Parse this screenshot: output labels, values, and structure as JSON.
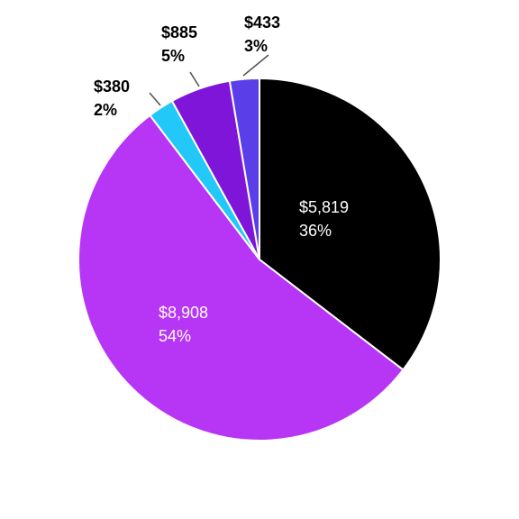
{
  "chart_data": {
    "type": "pie",
    "title": "",
    "legend": "none",
    "start": "12 o'clock",
    "direction": "clockwise",
    "slices": [
      {
        "value": 5819,
        "value_label": "$5,819",
        "pct_label": "36%",
        "color": "#000000",
        "label_position": "inside"
      },
      {
        "value": 8908,
        "value_label": "$8,908",
        "pct_label": "54%",
        "color": "#b735f5",
        "label_position": "inside"
      },
      {
        "value": 380,
        "value_label": "$380",
        "pct_label": "2%",
        "color": "#22c8f7",
        "label_position": "outside"
      },
      {
        "value": 885,
        "value_label": "$885",
        "pct_label": "5%",
        "color": "#7e15d8",
        "label_position": "outside"
      },
      {
        "value": 433,
        "value_label": "$433",
        "pct_label": "3%",
        "color": "#5a3ee8",
        "label_position": "outside"
      }
    ]
  }
}
